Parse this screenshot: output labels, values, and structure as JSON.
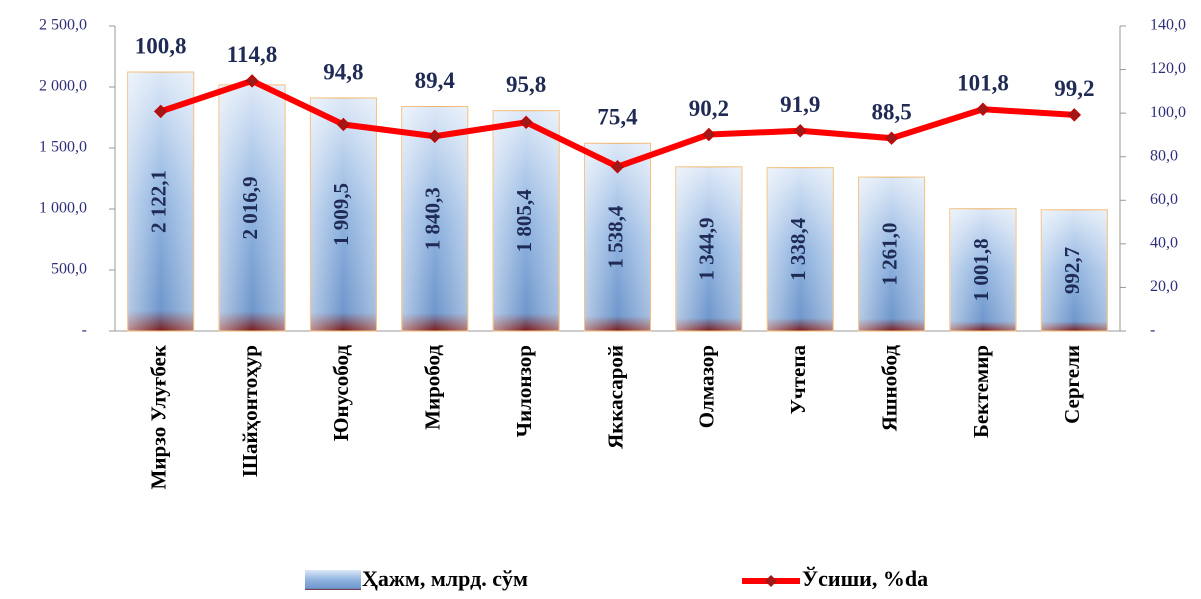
{
  "chart_data": {
    "type": "bar",
    "categories": [
      "Мирзо Улуғбек",
      "Шайҳонтоҳур",
      "Юнусобод",
      "Миробод",
      "Чилонзор",
      "Яккасарой",
      "Олмазор",
      "Учтепа",
      "Яшнобод",
      "Бектемир",
      "Сергели"
    ],
    "series": [
      {
        "name": "Ҳажм, млрд. сўм",
        "type": "bar",
        "color": "#8fb3e0",
        "values": [
          2122.1,
          2016.9,
          1909.5,
          1840.3,
          1805.4,
          1538.4,
          1344.9,
          1338.4,
          1261.0,
          1001.8,
          992.7
        ],
        "value_labels": [
          "2 122,1",
          "2 016,9",
          "1 909,5",
          "1 840,3",
          "1 805,4",
          "1 538,4",
          "1 344,9",
          "1 338,4",
          "1 261,0",
          "1 001,8",
          "992,7"
        ]
      },
      {
        "name": "Ўсиши, %da",
        "type": "line",
        "axis": "y2",
        "color": "#ff0000",
        "values": [
          100.8,
          114.8,
          94.8,
          89.4,
          95.8,
          75.4,
          90.2,
          91.9,
          88.5,
          101.8,
          99.2
        ],
        "value_labels": [
          "100,8",
          "114,8",
          "94,8",
          "89,4",
          "95,8",
          "75,4",
          "90,2",
          "91,9",
          "88,5",
          "101,8",
          "99,2"
        ]
      }
    ],
    "ylim": [
      0,
      2500
    ],
    "yticks": [
      {
        "value": 0,
        "label": "-"
      },
      {
        "value": 500,
        "label": "500,0"
      },
      {
        "value": 1000,
        "label": "1 000,0"
      },
      {
        "value": 1500,
        "label": "1 500,0"
      },
      {
        "value": 2000,
        "label": "2 000,0"
      },
      {
        "value": 2500,
        "label": "2 500,0"
      }
    ],
    "y2lim": [
      0,
      140
    ],
    "y2ticks": [
      {
        "value": 0,
        "label": "-"
      },
      {
        "value": 20,
        "label": "20,0"
      },
      {
        "value": 40,
        "label": "40,0"
      },
      {
        "value": 60,
        "label": "60,0"
      },
      {
        "value": 80,
        "label": "80,0"
      },
      {
        "value": 100,
        "label": "100,0"
      },
      {
        "value": 120,
        "label": "120,0"
      },
      {
        "value": 140,
        "label": "140,0"
      }
    ],
    "legend": "bottom"
  }
}
